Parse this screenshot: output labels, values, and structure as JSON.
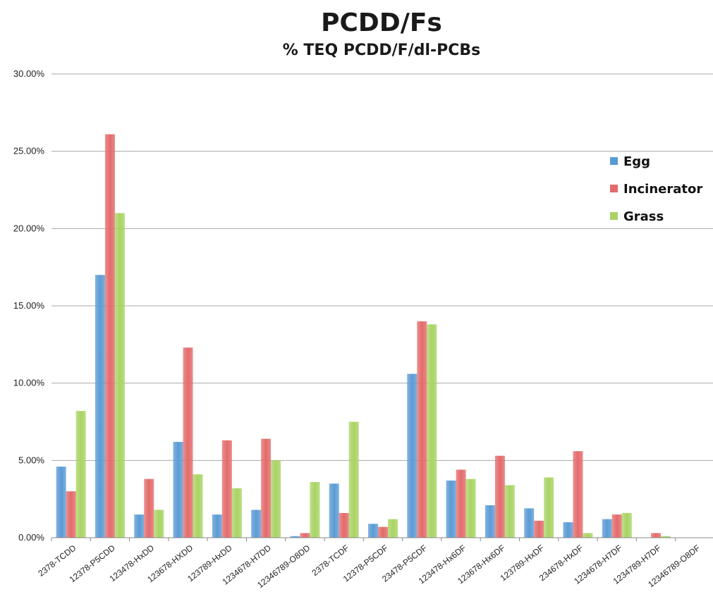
{
  "chart_data": {
    "type": "bar",
    "title": "PCDD/Fs",
    "subtitle": "% TEQ PCDD/F/dl-PCBs",
    "xlabel": "",
    "ylabel": "",
    "ylim": [
      0,
      30
    ],
    "y_ticks": [
      "0.00%",
      "5.00%",
      "10.00%",
      "15.00%",
      "20.00%",
      "25.00%",
      "30.00%"
    ],
    "grid": true,
    "legend_position": "right",
    "categories": [
      "2378-TCDD",
      "12378-P5CDD",
      "123478-HxDD",
      "123678-HXDD",
      "123789-HxDD",
      "1234678-H7DD",
      "12346789-O8DD",
      "2378-TCDF",
      "12378-P5CDF",
      "23478-P5CDF",
      "123478-Hx6DF",
      "123678-Hx6DF",
      "123789-HxDF",
      "234678-HxDF",
      "1234678-H7DF",
      "1234789-H7DF",
      "12346789-O8DF"
    ],
    "series": [
      {
        "name": "Egg",
        "color": "#5b9bd5",
        "values": [
          4.6,
          17.0,
          1.5,
          6.2,
          1.5,
          1.8,
          0.1,
          3.5,
          0.9,
          10.6,
          3.7,
          2.1,
          1.9,
          1.0,
          1.2,
          0.0,
          0.0
        ]
      },
      {
        "name": "Incinerator",
        "color": "#e46b6b",
        "values": [
          3.0,
          26.1,
          3.8,
          12.3,
          6.3,
          6.4,
          0.3,
          1.6,
          0.7,
          14.0,
          4.4,
          5.3,
          1.1,
          5.6,
          1.5,
          0.3,
          0.0
        ]
      },
      {
        "name": "Grass",
        "color": "#a9d464",
        "values": [
          8.2,
          21.0,
          1.8,
          4.1,
          3.2,
          5.0,
          3.6,
          7.5,
          1.2,
          13.8,
          3.8,
          3.4,
          3.9,
          0.3,
          1.6,
          0.1,
          0.0
        ]
      }
    ]
  }
}
